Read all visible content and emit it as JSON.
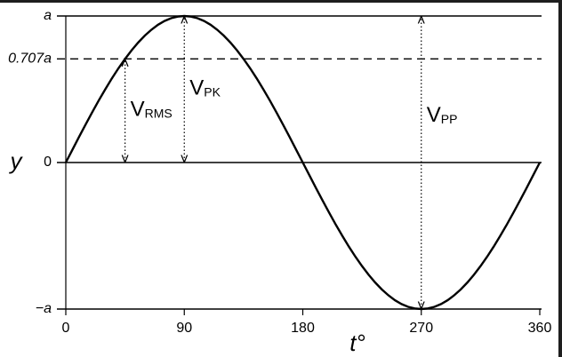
{
  "chart_data": {
    "type": "line",
    "x": [
      0,
      5,
      10,
      15,
      20,
      25,
      30,
      35,
      40,
      45,
      50,
      55,
      60,
      65,
      70,
      75,
      80,
      85,
      90,
      95,
      100,
      105,
      110,
      115,
      120,
      125,
      130,
      135,
      140,
      145,
      150,
      155,
      160,
      165,
      170,
      175,
      180,
      185,
      190,
      195,
      200,
      205,
      210,
      215,
      220,
      225,
      230,
      235,
      240,
      245,
      250,
      255,
      260,
      265,
      270,
      275,
      280,
      285,
      290,
      295,
      300,
      305,
      310,
      315,
      320,
      325,
      330,
      335,
      340,
      345,
      350,
      355,
      360
    ],
    "series": [
      {
        "color": "#000000",
        "values": [
          0,
          0.087,
          0.174,
          0.259,
          0.342,
          0.423,
          0.5,
          0.574,
          0.643,
          0.707,
          0.766,
          0.819,
          0.866,
          0.906,
          0.94,
          0.966,
          0.985,
          0.996,
          1,
          0.996,
          0.985,
          0.966,
          0.94,
          0.906,
          0.866,
          0.819,
          0.766,
          0.707,
          0.643,
          0.574,
          0.5,
          0.423,
          0.342,
          0.259,
          0.174,
          0.087,
          0,
          -0.087,
          -0.174,
          -0.259,
          -0.342,
          -0.423,
          -0.5,
          -0.574,
          -0.643,
          -0.707,
          -0.766,
          -0.819,
          -0.866,
          -0.906,
          -0.94,
          -0.966,
          -0.985,
          -0.996,
          -1,
          -0.996,
          -0.985,
          -0.966,
          -0.94,
          -0.906,
          -0.866,
          -0.819,
          -0.766,
          -0.707,
          -0.643,
          -0.574,
          -0.5,
          -0.423,
          -0.342,
          -0.259,
          -0.174,
          -0.087,
          0
        ]
      }
    ],
    "xlim": [
      0,
      360
    ],
    "xticks": [
      0,
      90,
      180,
      270,
      360
    ],
    "ylim": [
      -1,
      1
    ],
    "yticks": [
      {
        "value": 1,
        "label": "a"
      },
      {
        "value": 0.707,
        "label": "0.707a"
      },
      0,
      {
        "value": -1,
        "label": "−a"
      }
    ],
    "grid": true,
    "grid_dashed": [
      false,
      true,
      false,
      false
    ],
    "xlabel": "t°",
    "ylabel": "y",
    "annotations": [
      {
        "text": "V",
        "sub": "RMS",
        "x": 45,
        "y": [
          0,
          0.707
        ]
      },
      {
        "text": "V",
        "sub": "PK",
        "x": 90,
        "y": [
          0,
          1
        ]
      },
      {
        "text": "V",
        "sub": "PP",
        "x": 270,
        "y": [
          -1,
          1
        ]
      }
    ]
  }
}
